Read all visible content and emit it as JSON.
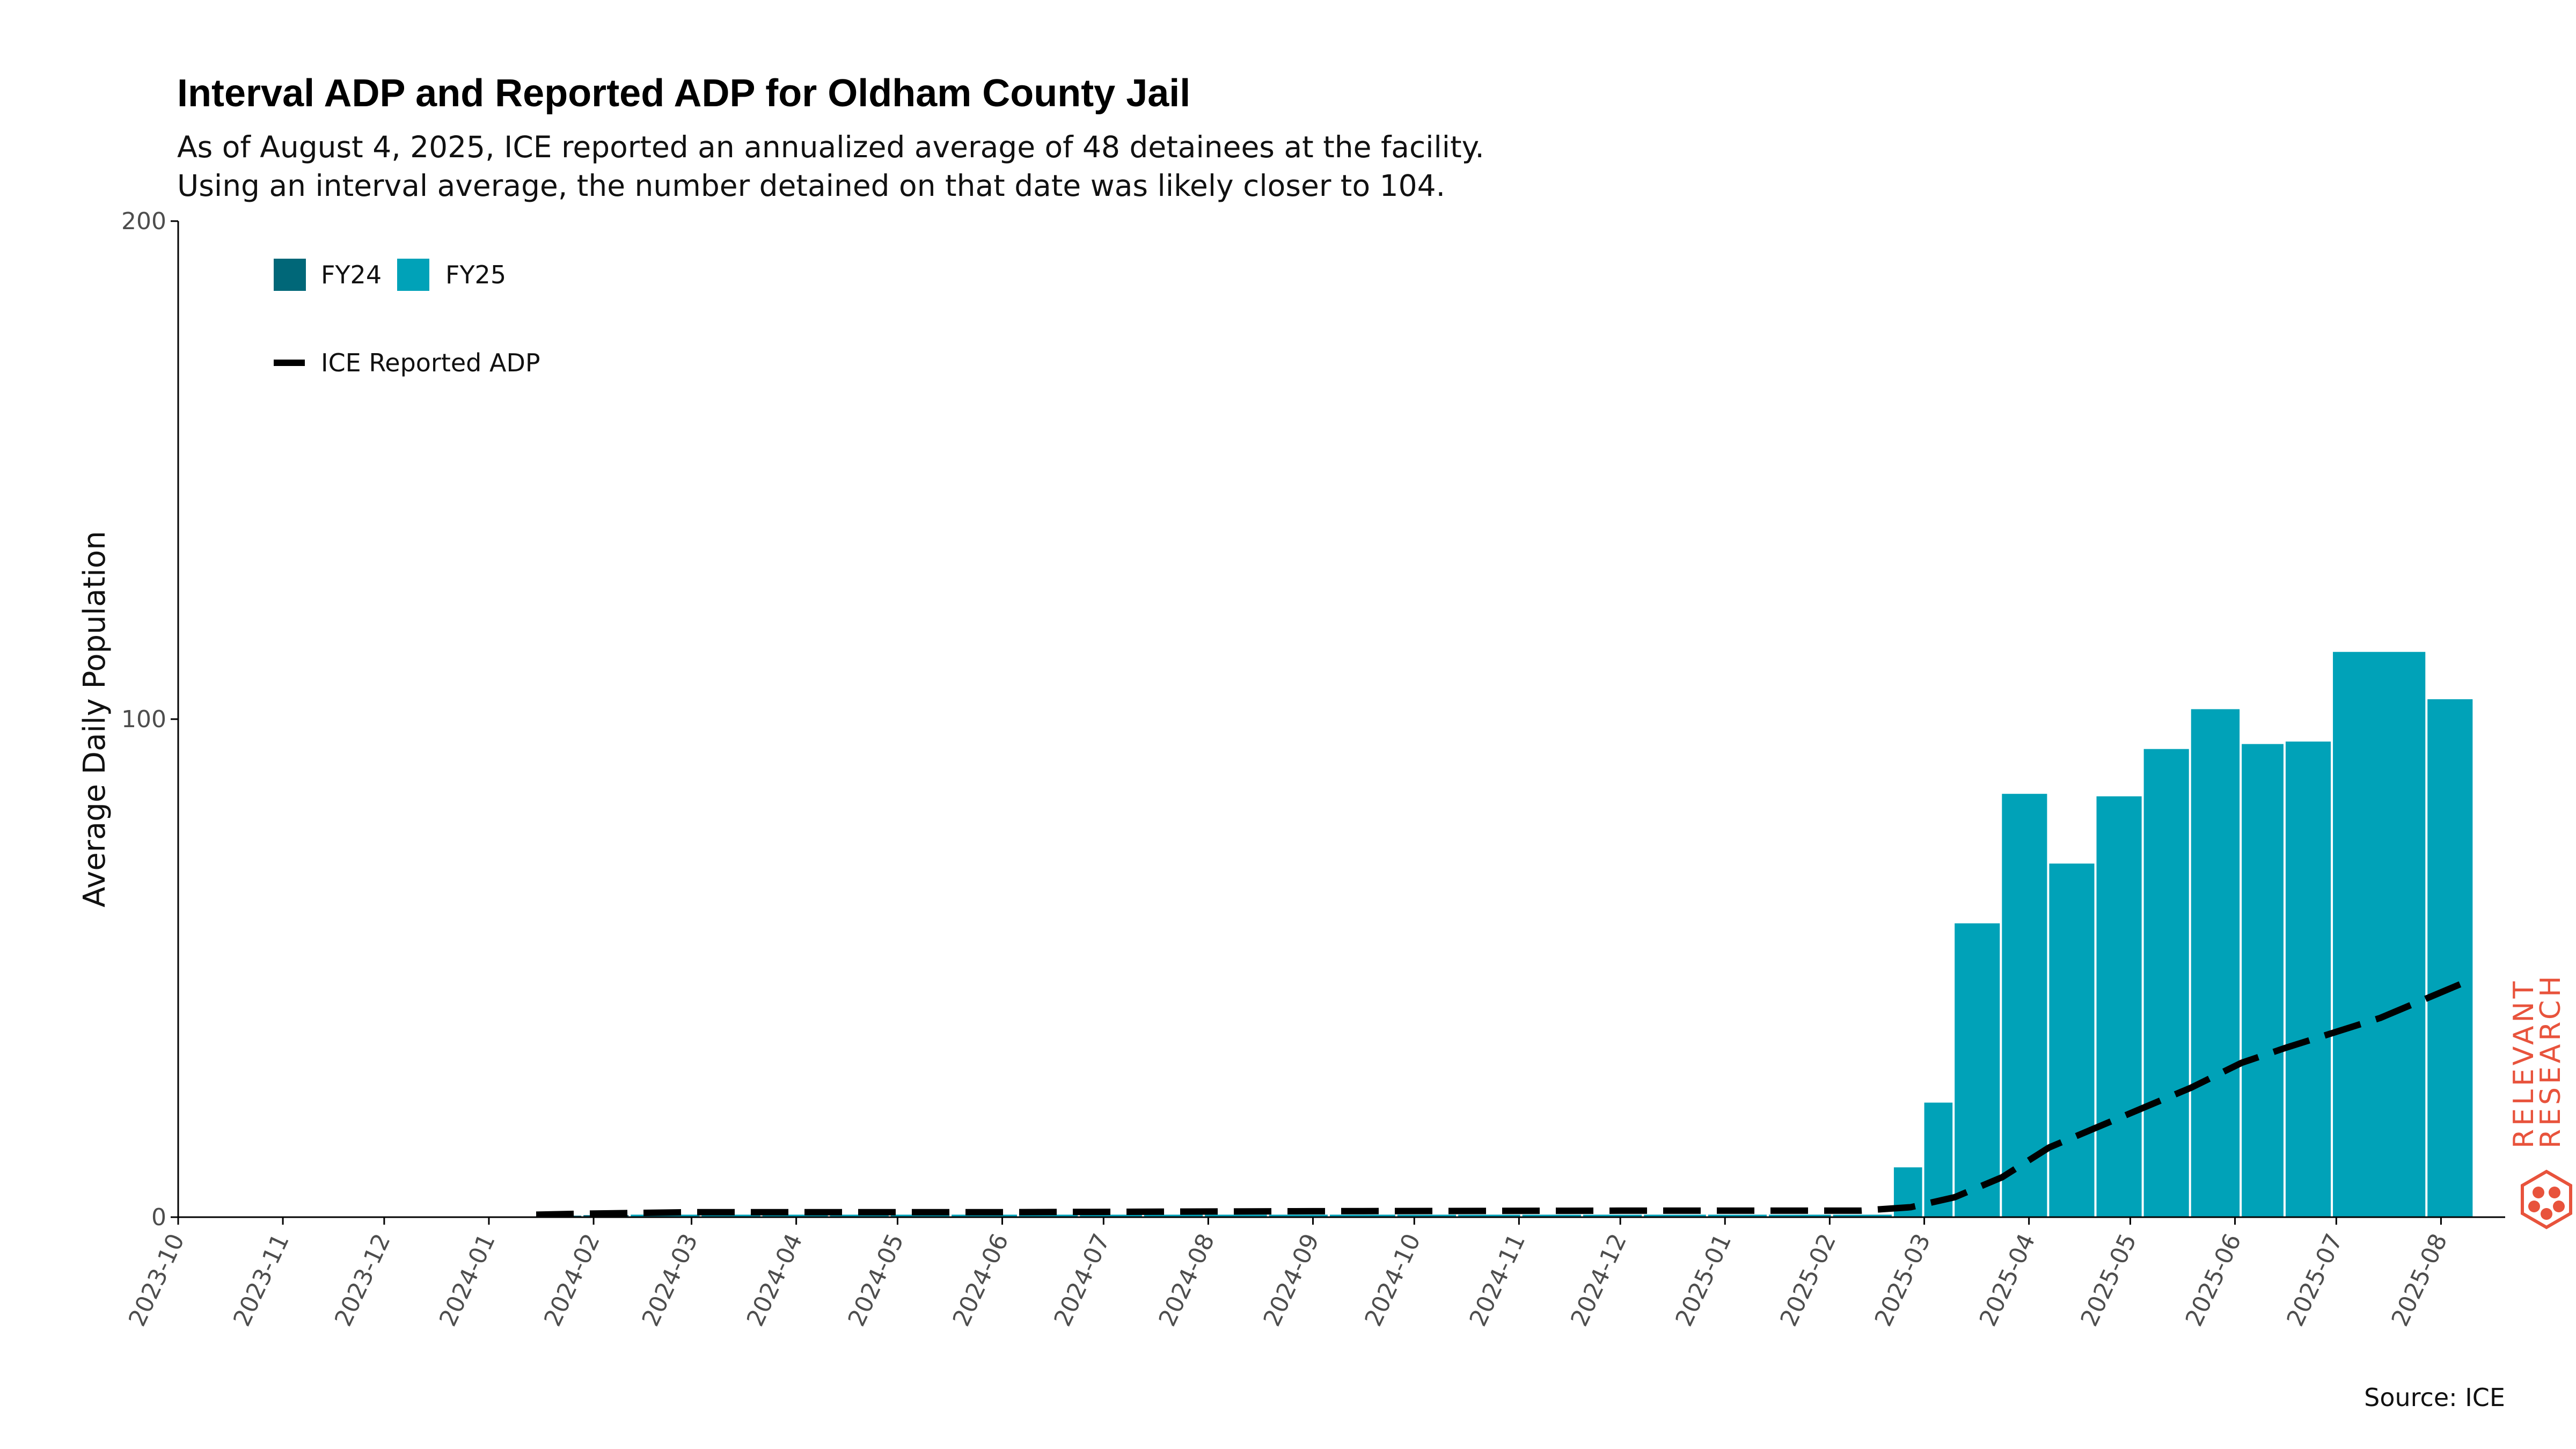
{
  "chart_data": {
    "type": "bar",
    "title": "Interval ADP and Reported ADP for Oldham County Jail",
    "subtitle_lines": [
      "As of August 4, 2025, ICE reported an annualized average of 48 detainees at the facility.",
      "Using an interval average, the number detained on that date was likely closer to 104."
    ],
    "ylabel": "Average Daily Population",
    "xlabel": "",
    "ylim": [
      0,
      200
    ],
    "yticks": [
      0,
      100,
      200
    ],
    "x_range": [
      "2023-10-01",
      "2025-08-20"
    ],
    "x_tick_labels": [
      "2023-10",
      "2023-11",
      "2023-12",
      "2024-01",
      "2024-02",
      "2024-03",
      "2024-04",
      "2024-05",
      "2024-06",
      "2024-07",
      "2024-08",
      "2024-09",
      "2024-10",
      "2024-11",
      "2024-12",
      "2025-01",
      "2025-02",
      "2025-03",
      "2025-04",
      "2025-05",
      "2025-06",
      "2025-07",
      "2025-08"
    ],
    "bar_colors": {
      "FY24": "#006778",
      "FY25": "#00a2b8"
    },
    "line_color": "#000000",
    "legend": {
      "placement": "top-left",
      "bar_entries": [
        "FY24",
        "FY25"
      ],
      "line_entry": "ICE Reported ADP"
    },
    "bars": [
      {
        "start": "2024-01-15",
        "end": "2024-01-29",
        "value": 0.3,
        "fy": "FY24"
      },
      {
        "start": "2024-01-29",
        "end": "2024-02-12",
        "value": 0.4,
        "fy": "FY24"
      },
      {
        "start": "2024-02-12",
        "end": "2024-03-04",
        "value": 0.5,
        "fy": "FY25"
      },
      {
        "start": "2024-03-04",
        "end": "2024-03-22",
        "value": 0.5,
        "fy": "FY25"
      },
      {
        "start": "2024-03-22",
        "end": "2024-04-11",
        "value": 0.5,
        "fy": "FY25"
      },
      {
        "start": "2024-04-11",
        "end": "2024-04-29",
        "value": 0.5,
        "fy": "FY25"
      },
      {
        "start": "2024-04-29",
        "end": "2024-05-17",
        "value": 0.5,
        "fy": "FY25"
      },
      {
        "start": "2024-05-17",
        "end": "2024-06-06",
        "value": 0.5,
        "fy": "FY25"
      },
      {
        "start": "2024-06-06",
        "end": "2024-06-24",
        "value": 0.5,
        "fy": "FY25"
      },
      {
        "start": "2024-06-24",
        "end": "2024-07-13",
        "value": 0.5,
        "fy": "FY25"
      },
      {
        "start": "2024-07-13",
        "end": "2024-07-31",
        "value": 0.5,
        "fy": "FY25"
      },
      {
        "start": "2024-07-31",
        "end": "2024-08-19",
        "value": 0.5,
        "fy": "FY25"
      },
      {
        "start": "2024-08-19",
        "end": "2024-09-06",
        "value": 0.5,
        "fy": "FY25"
      },
      {
        "start": "2024-09-06",
        "end": "2024-09-26",
        "value": 0.5,
        "fy": "FY25"
      },
      {
        "start": "2024-09-26",
        "end": "2024-10-14",
        "value": 0.5,
        "fy": "FY25"
      },
      {
        "start": "2024-10-14",
        "end": "2024-11-02",
        "value": 0.5,
        "fy": "FY25"
      },
      {
        "start": "2024-11-02",
        "end": "2024-11-20",
        "value": 0.5,
        "fy": "FY25"
      },
      {
        "start": "2024-11-20",
        "end": "2024-12-08",
        "value": 0.5,
        "fy": "FY25"
      },
      {
        "start": "2024-12-08",
        "end": "2024-12-27",
        "value": 0.5,
        "fy": "FY25"
      },
      {
        "start": "2024-12-27",
        "end": "2025-01-14",
        "value": 0.5,
        "fy": "FY25"
      },
      {
        "start": "2025-01-14",
        "end": "2025-02-02",
        "value": 0.5,
        "fy": "FY25"
      },
      {
        "start": "2025-02-02",
        "end": "2025-02-20",
        "value": 0.5,
        "fy": "FY25"
      },
      {
        "start": "2025-02-20",
        "end": "2025-03-01",
        "value": 10,
        "fy": "FY25"
      },
      {
        "start": "2025-03-01",
        "end": "2025-03-10",
        "value": 23,
        "fy": "FY25"
      },
      {
        "start": "2025-03-10",
        "end": "2025-03-24",
        "value": 59,
        "fy": "FY25"
      },
      {
        "start": "2025-03-24",
        "end": "2025-04-07",
        "value": 85,
        "fy": "FY25"
      },
      {
        "start": "2025-04-07",
        "end": "2025-04-21",
        "value": 71,
        "fy": "FY25"
      },
      {
        "start": "2025-04-21",
        "end": "2025-05-05",
        "value": 84.5,
        "fy": "FY25"
      },
      {
        "start": "2025-05-05",
        "end": "2025-05-19",
        "value": 94,
        "fy": "FY25"
      },
      {
        "start": "2025-05-19",
        "end": "2025-06-03",
        "value": 102,
        "fy": "FY25"
      },
      {
        "start": "2025-06-03",
        "end": "2025-06-16",
        "value": 95,
        "fy": "FY25"
      },
      {
        "start": "2025-06-16",
        "end": "2025-06-30",
        "value": 95.5,
        "fy": "FY25"
      },
      {
        "start": "2025-06-30",
        "end": "2025-07-28",
        "value": 113.5,
        "fy": "FY25"
      },
      {
        "start": "2025-07-28",
        "end": "2025-08-11",
        "value": 104,
        "fy": "FY25"
      }
    ],
    "line_series": {
      "name": "ICE Reported ADP",
      "style": "dashed",
      "points": [
        {
          "x": "2024-01-15",
          "y": 0.5
        },
        {
          "x": "2024-01-29",
          "y": 0.7
        },
        {
          "x": "2024-03-01",
          "y": 1
        },
        {
          "x": "2024-06-01",
          "y": 1
        },
        {
          "x": "2024-09-01",
          "y": 1.2
        },
        {
          "x": "2024-12-01",
          "y": 1.3
        },
        {
          "x": "2025-02-10",
          "y": 1.3
        },
        {
          "x": "2025-02-25",
          "y": 2
        },
        {
          "x": "2025-03-10",
          "y": 4
        },
        {
          "x": "2025-03-24",
          "y": 8
        },
        {
          "x": "2025-04-07",
          "y": 14
        },
        {
          "x": "2025-04-21",
          "y": 18
        },
        {
          "x": "2025-05-05",
          "y": 22
        },
        {
          "x": "2025-05-19",
          "y": 26
        },
        {
          "x": "2025-06-03",
          "y": 31
        },
        {
          "x": "2025-06-16",
          "y": 34
        },
        {
          "x": "2025-06-30",
          "y": 37
        },
        {
          "x": "2025-07-14",
          "y": 40
        },
        {
          "x": "2025-07-28",
          "y": 44
        },
        {
          "x": "2025-08-11",
          "y": 48
        }
      ]
    }
  },
  "caption": "Source: ICE",
  "logo": {
    "line1": "RELEVANT",
    "line2": "RESEARCH",
    "color": "#e8533c"
  }
}
